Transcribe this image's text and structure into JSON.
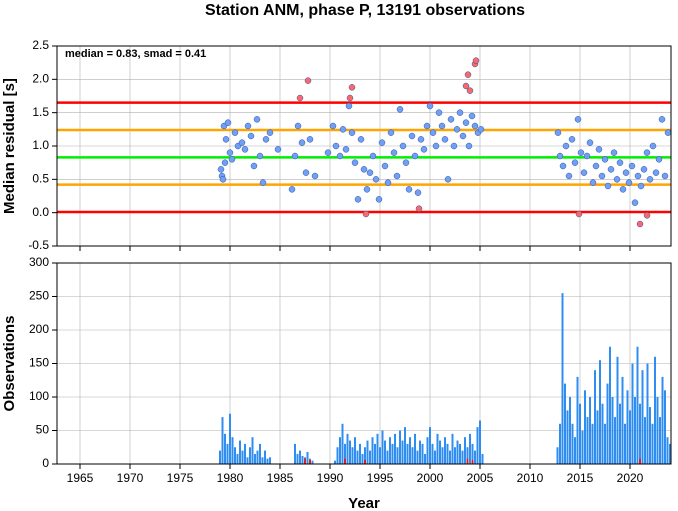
{
  "chart_data": [
    {
      "type": "scatter",
      "title": "Station ANM, phase P, 13191 observations",
      "ylabel": "Median residual [s]",
      "annotation": "median = 0.83, smad = 0.41",
      "xlim": [
        1962.7,
        2024.1
      ],
      "xticks": [
        1965,
        1970,
        1975,
        1980,
        1985,
        1990,
        1995,
        2000,
        2005,
        2010,
        2015,
        2020
      ],
      "ylim": [
        -0.5,
        2.5
      ],
      "yticks": [
        -0.5,
        {
          "value": 0,
          "label": "0.0"
        },
        0.5,
        {
          "value": 1,
          "label": "1.0"
        },
        1.5,
        {
          "value": 2,
          "label": "2.0"
        },
        2.5
      ],
      "grid": true,
      "lines": [
        {
          "value": 1.65,
          "color": "#ff0000"
        },
        {
          "value": 1.24,
          "color": "#ffa500"
        },
        {
          "value": 0.83,
          "color": "#00ee00"
        },
        {
          "value": 0.42,
          "color": "#ffa500"
        },
        {
          "value": 0.01,
          "color": "#ff0000"
        }
      ],
      "series": [
        {
          "color": "#6fa0f5",
          "x": [
            1979.1,
            1979.2,
            1979.3,
            1979.4,
            1979.5,
            1979.6,
            1979.8,
            1980.0,
            1980.2,
            1980.5,
            1980.8,
            1981.2,
            1981.5,
            1981.8,
            1982.1,
            1982.4,
            1982.7,
            1983.0,
            1983.3,
            1983.6,
            1984.0,
            1984.8,
            1986.2,
            1986.5,
            1986.8,
            1987.2,
            1987.6,
            1988.0,
            1988.5,
            1989.8,
            1990.3,
            1990.6,
            1991.0,
            1991.3,
            1991.6,
            1991.9,
            1992.2,
            1992.5,
            1992.8,
            1993.1,
            1993.4,
            1993.7,
            1994.0,
            1994.3,
            1994.6,
            1994.9,
            1995.2,
            1995.5,
            1995.8,
            1996.1,
            1996.4,
            1996.7,
            1997.0,
            1997.3,
            1997.6,
            1997.9,
            1998.2,
            1998.5,
            1998.8,
            1999.1,
            1999.4,
            1999.7,
            2000.0,
            2000.3,
            2000.6,
            2000.9,
            2001.2,
            2001.5,
            2001.8,
            2002.1,
            2002.4,
            2002.7,
            2003.0,
            2003.3,
            2003.6,
            2003.9,
            2004.2,
            2004.5,
            2004.8,
            2005.1,
            2012.8,
            2013.0,
            2013.3,
            2013.6,
            2013.9,
            2014.2,
            2014.5,
            2014.8,
            2015.1,
            2015.4,
            2015.7,
            2016.0,
            2016.3,
            2016.6,
            2016.9,
            2017.2,
            2017.5,
            2017.8,
            2018.1,
            2018.4,
            2018.7,
            2019.0,
            2019.3,
            2019.6,
            2019.9,
            2020.2,
            2020.5,
            2020.8,
            2021.1,
            2021.4,
            2021.7,
            2022.0,
            2022.3,
            2022.6,
            2022.9,
            2023.2,
            2023.5,
            2023.8
          ],
          "values": [
            0.65,
            0.55,
            0.5,
            1.3,
            0.75,
            1.1,
            1.35,
            0.9,
            0.8,
            1.2,
            1.0,
            1.05,
            0.95,
            1.3,
            1.15,
            0.7,
            1.4,
            0.85,
            0.45,
            1.1,
            1.2,
            0.95,
            0.35,
            0.85,
            1.3,
            1.05,
            0.6,
            1.1,
            0.55,
            0.9,
            1.3,
            1.0,
            0.85,
            1.25,
            0.95,
            1.6,
            1.2,
            0.75,
            0.2,
            1.1,
            0.65,
            0.35,
            0.6,
            0.85,
            0.5,
            0.2,
            1.05,
            0.7,
            0.45,
            1.2,
            0.9,
            0.55,
            1.55,
            1.0,
            0.75,
            0.35,
            1.15,
            0.85,
            0.3,
            1.1,
            0.95,
            1.3,
            1.6,
            1.2,
            1.0,
            1.5,
            1.3,
            1.1,
            0.5,
            1.4,
            1.0,
            1.25,
            1.5,
            1.15,
            1.35,
            1.0,
            1.45,
            1.3,
            1.2,
            1.25,
            1.2,
            0.85,
            0.7,
            1.0,
            0.55,
            1.1,
            0.75,
            1.4,
            0.9,
            0.6,
            0.85,
            1.05,
            0.45,
            0.7,
            0.95,
            0.55,
            0.8,
            0.4,
            0.65,
            0.9,
            0.5,
            0.75,
            0.35,
            0.6,
            0.45,
            0.7,
            0.15,
            0.55,
            0.4,
            0.65,
            0.9,
            0.5,
            1.0,
            0.6,
            0.8,
            1.4,
            0.55,
            1.2
          ]
        },
        {
          "color": "#f86a6a",
          "x": [
            1987.0,
            1987.8,
            1992.0,
            1992.2,
            1993.6,
            1998.9,
            2003.6,
            2003.8,
            2004.0,
            2004.5,
            2004.6,
            2014.9,
            2021.0,
            2021.7
          ],
          "values": [
            1.72,
            1.98,
            1.72,
            1.88,
            -0.02,
            0.06,
            1.9,
            2.07,
            1.83,
            2.23,
            2.28,
            -0.02,
            -0.17,
            -0.04
          ]
        }
      ]
    },
    {
      "type": "bar",
      "xlabel": "Year",
      "ylabel": "Observations",
      "xlim": [
        1962.7,
        2024.1
      ],
      "xticks": [
        1965,
        1970,
        1975,
        1980,
        1985,
        1990,
        1995,
        2000,
        2005,
        2010,
        2015,
        2020
      ],
      "ylim": [
        0,
        300
      ],
      "yticks": [
        0,
        50,
        100,
        150,
        200,
        250,
        300
      ],
      "grid": true,
      "series": [
        {
          "color": "#2f8cf0",
          "x": [
            1979.0,
            1979.25,
            1979.5,
            1979.75,
            1980.0,
            1980.25,
            1980.5,
            1980.75,
            1981.0,
            1981.25,
            1981.5,
            1981.75,
            1982.0,
            1982.25,
            1982.5,
            1982.75,
            1983.0,
            1983.25,
            1983.5,
            1983.75,
            1984.0,
            1986.5,
            1986.75,
            1987.0,
            1987.25,
            1987.5,
            1987.75,
            1988.0,
            1988.25,
            1990.5,
            1990.75,
            1991.0,
            1991.25,
            1991.5,
            1991.75,
            1992.0,
            1992.25,
            1992.5,
            1992.75,
            1993.0,
            1993.25,
            1993.5,
            1993.75,
            1994.0,
            1994.25,
            1994.5,
            1994.75,
            1995.0,
            1995.25,
            1995.5,
            1995.75,
            1996.0,
            1996.25,
            1996.5,
            1996.75,
            1997.0,
            1997.25,
            1997.5,
            1997.75,
            1998.0,
            1998.25,
            1998.5,
            1998.75,
            1999.0,
            1999.25,
            1999.5,
            1999.75,
            2000.0,
            2000.25,
            2000.5,
            2000.75,
            2001.0,
            2001.25,
            2001.5,
            2001.75,
            2002.0,
            2002.25,
            2002.5,
            2002.75,
            2003.0,
            2003.25,
            2003.5,
            2003.75,
            2004.0,
            2004.25,
            2004.5,
            2004.75,
            2005.0,
            2005.25,
            2012.75,
            2013.0,
            2013.25,
            2013.5,
            2013.75,
            2014.0,
            2014.25,
            2014.5,
            2014.75,
            2015.0,
            2015.25,
            2015.5,
            2015.75,
            2016.0,
            2016.25,
            2016.5,
            2016.75,
            2017.0,
            2017.25,
            2017.5,
            2017.75,
            2018.0,
            2018.25,
            2018.5,
            2018.75,
            2019.0,
            2019.25,
            2019.5,
            2019.75,
            2020.0,
            2020.25,
            2020.5,
            2020.75,
            2021.0,
            2021.25,
            2021.5,
            2021.75,
            2022.0,
            2022.25,
            2022.5,
            2022.75,
            2023.0,
            2023.25,
            2023.5,
            2023.75,
            2024.0
          ],
          "values": [
            20,
            70,
            45,
            30,
            75,
            40,
            25,
            15,
            35,
            20,
            30,
            10,
            25,
            40,
            15,
            20,
            30,
            10,
            20,
            8,
            10,
            30,
            15,
            20,
            12,
            10,
            18,
            8,
            5,
            5,
            25,
            40,
            60,
            30,
            45,
            35,
            25,
            40,
            20,
            30,
            15,
            25,
            35,
            20,
            40,
            30,
            45,
            25,
            50,
            35,
            20,
            40,
            30,
            45,
            25,
            50,
            35,
            55,
            30,
            40,
            25,
            45,
            20,
            35,
            30,
            15,
            40,
            55,
            30,
            20,
            45,
            35,
            25,
            40,
            30,
            20,
            45,
            25,
            35,
            30,
            20,
            40,
            25,
            45,
            30,
            20,
            55,
            65,
            15,
            25,
            60,
            255,
            120,
            80,
            100,
            60,
            40,
            130,
            90,
            50,
            110,
            70,
            100,
            60,
            140,
            80,
            155,
            90,
            60,
            120,
            175,
            100,
            70,
            160,
            90,
            130,
            60,
            110,
            80,
            150,
            100,
            175,
            90,
            140,
            70,
            150,
            85,
            60,
            160,
            100,
            70,
            130,
            110,
            40,
            30
          ]
        },
        {
          "color": "#e02020",
          "x": [
            1987.5,
            1988.0,
            1991.5,
            1993.5,
            2003.75,
            2004.25,
            2021.0
          ],
          "values": [
            8,
            6,
            8,
            6,
            8,
            6,
            8
          ]
        }
      ]
    }
  ]
}
